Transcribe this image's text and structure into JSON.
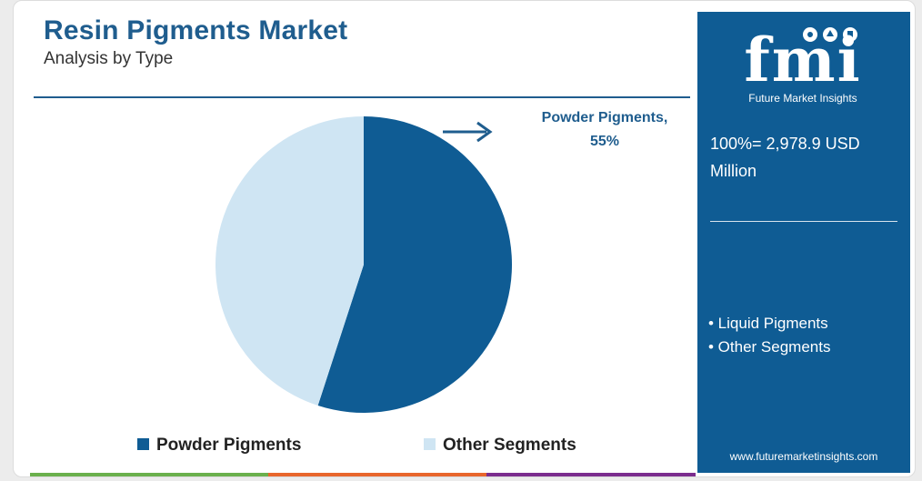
{
  "header": {
    "title": "Resin Pigments Market",
    "subtitle": "Analysis by Type"
  },
  "callout": {
    "line1": "Powder Pigments,",
    "line2": "55%"
  },
  "sidebar": {
    "logo_text": "fmi",
    "logo_subtitle": "Future Market Insights",
    "total_line1": "100%= 2,978.9 USD",
    "total_line2": "Million",
    "segments": [
      "• Liquid Pigments",
      "• Other Segments"
    ],
    "website": "www.futuremarketinsights.com"
  },
  "colors": {
    "powder": "#0f5c94",
    "other": "#cfe5f3",
    "accent": "#1f5d8e",
    "bar": [
      "#6ab04c",
      "#e8662c",
      "#7b2d8e"
    ]
  },
  "chart_data": {
    "type": "pie",
    "title": "Resin Pigments Market",
    "subtitle": "Analysis by Type",
    "categories": [
      "Powder Pigments",
      "Other Segments"
    ],
    "values": [
      55,
      45
    ],
    "unit": "%",
    "legend_position": "bottom"
  }
}
